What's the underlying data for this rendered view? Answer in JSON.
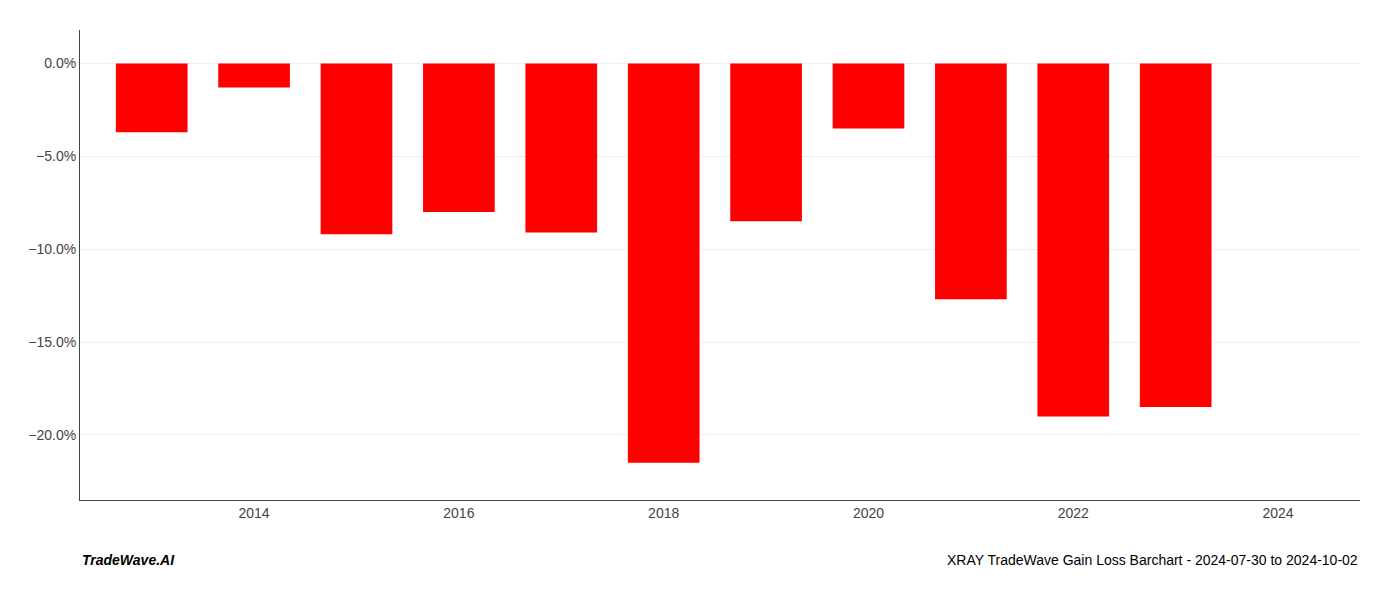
{
  "chart_data": {
    "type": "bar",
    "title": "XRAY TradeWave Gain Loss Barchart - 2024-07-30 to 2024-10-02",
    "annotations": [
      "TradeWave.AI"
    ],
    "x": [
      2013,
      2014,
      2015,
      2016,
      2017,
      2018,
      2019,
      2020,
      2021,
      2022,
      2023
    ],
    "values": [
      -3.7,
      -1.3,
      -9.2,
      -8.0,
      -9.1,
      -21.5,
      -8.5,
      -3.5,
      -12.7,
      -19.0,
      -18.5
    ],
    "color": "#ff0000",
    "xlim": [
      2012.3,
      2024.8
    ],
    "xticks": [
      2014,
      2016,
      2018,
      2020,
      2022,
      2024
    ],
    "ylim": [
      -23.5,
      1.8
    ],
    "yticks": [
      {
        "value": 0.0,
        "label": "0.0%"
      },
      {
        "value": -5.0,
        "label": "−5.0%"
      },
      {
        "value": -10.0,
        "label": "−10.0%"
      },
      {
        "value": -15.0,
        "label": "−15.0%"
      },
      {
        "value": -20.0,
        "label": "−20.0%"
      }
    ],
    "grid": true
  }
}
